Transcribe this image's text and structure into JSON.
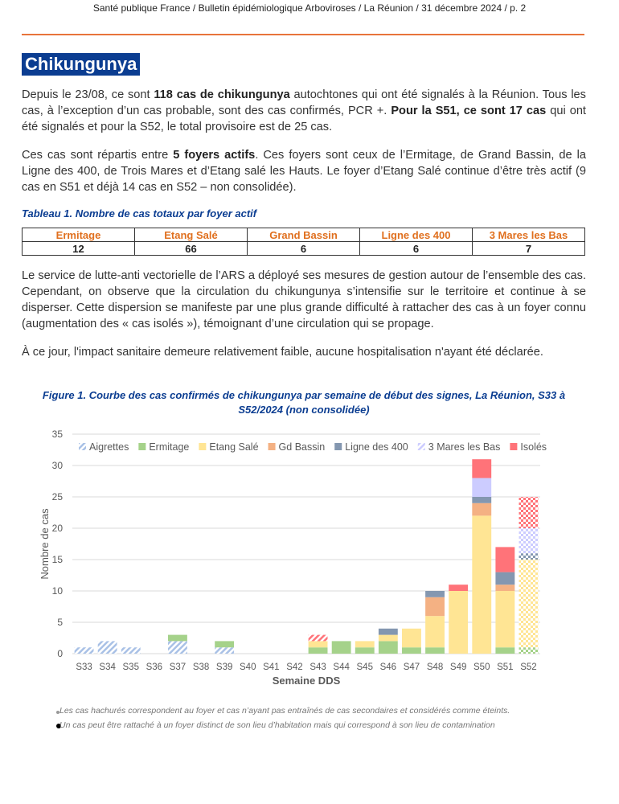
{
  "header": "Santé publique France / Bulletin épidémiologique Arboviroses / La Réunion / 31 décembre 2024 / p. 2",
  "title": "Chikungunya",
  "para1": {
    "a": "Depuis le 23/08, ce sont ",
    "b": "118 cas de chikungunya",
    "c": " autochtones qui ont été signalés à la Réunion. Tous les cas, à l’exception d’un cas probable, sont des cas confirmés, PCR +. ",
    "d": "Pour la S51, ce sont 17 cas",
    "e": " qui ont été signalés et pour la S52, le total provisoire est de 25 cas."
  },
  "para2": {
    "a": "Ces cas sont répartis entre ",
    "b": "5 foyers actifs",
    "c": ". Ces foyers sont ceux de l’Ermitage, de Grand Bassin, de la Ligne des 400, de Trois Mares et d’Etang salé les Hauts. Le foyer d’Etang Salé continue d’être très actif (9 cas en S51 et déjà 14 cas en S52 – non consolidée)."
  },
  "table": {
    "caption": "Tableau 1. Nombre de cas totaux par foyer actif",
    "headers": [
      "Ermitage",
      "Etang Salé",
      "Grand Bassin",
      "Ligne des 400",
      "3 Mares les Bas"
    ],
    "values": [
      "12",
      "66",
      "6",
      "6",
      "7"
    ]
  },
  "para3": "Le service de lutte-anti vectorielle de l’ARS a déployé ses mesures de gestion autour de l’ensemble des cas. Cependant, on observe que la circulation du chikungunya s’intensifie sur le territoire et continue à se disperser. Cette dispersion se manifeste par une plus grande difficulté à rattacher des cas à un foyer connu (augmentation des « cas isolés »), témoignant d’une circulation qui se propage.",
  "para4": "À ce jour, l'impact sanitaire demeure relativement faible, aucune hospitalisation n'ayant été déclarée.",
  "figure_caption": "Figure 1. Courbe des cas confirmés de chikungunya par semaine de début des signes, La Réunion, S33 à S52/2024 (non consolidée)",
  "chart_data": {
    "type": "bar",
    "stacked": true,
    "xlabel": "Semaine DDS",
    "ylabel": "Nombre de cas",
    "ylim": [
      0,
      35
    ],
    "yticks": [
      0,
      5,
      10,
      15,
      20,
      25,
      30,
      35
    ],
    "legend_position": "top",
    "categories": [
      "S33",
      "S34",
      "S35",
      "S36",
      "S37",
      "S38",
      "S39",
      "S40",
      "S41",
      "S42",
      "S43",
      "S44",
      "S45",
      "S46",
      "S47",
      "S48",
      "S49",
      "S50",
      "S51",
      "S52"
    ],
    "series": [
      {
        "name": "Aigrettes",
        "color": "#a9c1e6",
        "values": [
          1,
          2,
          1,
          0,
          2,
          0,
          1,
          0,
          0,
          0,
          0,
          0,
          0,
          0,
          0,
          0,
          0,
          0,
          0,
          0
        ]
      },
      {
        "name": "Ermitage",
        "color": "#a5d28a",
        "values": [
          0,
          0,
          0,
          0,
          1,
          0,
          1,
          0,
          0,
          0,
          1,
          2,
          1,
          2,
          1,
          1,
          0,
          0,
          1,
          1
        ]
      },
      {
        "name": "Etang Salé",
        "color": "#ffe594",
        "values": [
          0,
          0,
          0,
          0,
          0,
          0,
          0,
          0,
          0,
          0,
          1,
          0,
          1,
          1,
          3,
          5,
          10,
          22,
          9,
          14
        ]
      },
      {
        "name": "Gd Bassin",
        "color": "#f4b183",
        "values": [
          0,
          0,
          0,
          0,
          0,
          0,
          0,
          0,
          0,
          0,
          0,
          0,
          0,
          0,
          0,
          3,
          0,
          2,
          1,
          0
        ]
      },
      {
        "name": "Ligne des 400",
        "color": "#8497b0",
        "values": [
          0,
          0,
          0,
          0,
          0,
          0,
          0,
          0,
          0,
          0,
          0,
          0,
          0,
          1,
          0,
          1,
          0,
          1,
          2,
          1
        ]
      },
      {
        "name": "3 Mares les Bas",
        "color": "#ccccff",
        "values": [
          0,
          0,
          0,
          0,
          0,
          0,
          0,
          0,
          0,
          0,
          0,
          0,
          0,
          0,
          0,
          0,
          0,
          3,
          0,
          4
        ]
      },
      {
        "name": "Isolés",
        "color": "#ff7379",
        "values": [
          0,
          0,
          0,
          0,
          0,
          0,
          0,
          0,
          0,
          0,
          1,
          0,
          0,
          0,
          0,
          0,
          1,
          3,
          4,
          5
        ]
      }
    ],
    "hatched_note": "Aigrettes and S43 Isolés hatched (extinct); S52 checkered (provisional)"
  },
  "notes": [
    "Les cas hachurés correspondent au foyer et cas n’ayant pas entraînés de cas secondaires et considérés comme éteints.",
    "Un cas peut être rattaché à un foyer distinct de son lieu d’habitation mais qui correspond à son lieu de contamination"
  ]
}
